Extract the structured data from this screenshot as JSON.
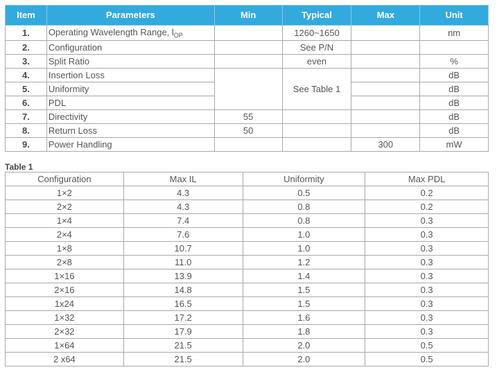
{
  "spec_table": {
    "headers": [
      "Item",
      "Parameters",
      "Min",
      "Typical",
      "Max",
      "Unit"
    ],
    "rows": [
      {
        "item": "1.",
        "param": "Operating Wavelength Range, ",
        "param_sub": "OP",
        "param_sub_prefix": "l",
        "min": "",
        "typical": "1260~1650",
        "max": "",
        "unit": "nm"
      },
      {
        "item": "2.",
        "param": "Configuration",
        "min": "",
        "typical": "See P/N",
        "max": "",
        "unit": ""
      },
      {
        "item": "3.",
        "param": "Split Ratio",
        "min": "",
        "typical": "even",
        "max": "",
        "unit": "%"
      },
      {
        "item": "4.",
        "param": "Insertion Loss",
        "min": "",
        "max": "",
        "unit": "dB"
      },
      {
        "item": "5.",
        "param": "Uniformity",
        "max": "",
        "unit": "dB"
      },
      {
        "item": "6.",
        "param": "PDL",
        "max": "",
        "unit": "dB"
      },
      {
        "item": "7.",
        "param": "Directivity",
        "min": "55",
        "typical": "",
        "max": "",
        "unit": "dB"
      },
      {
        "item": "8.",
        "param": "Return Loss",
        "min": "50",
        "typical": "",
        "max": "",
        "unit": "dB"
      },
      {
        "item": "9.",
        "param": "Power Handling",
        "min": "",
        "typical": "",
        "max": "300",
        "unit": "mW"
      }
    ],
    "merged_typical": "See Table 1"
  },
  "table1": {
    "title": "Table 1",
    "headers": [
      "Configuration",
      "Max IL",
      "Uniformity",
      "Max PDL"
    ],
    "rows": [
      [
        "1×2",
        "4.3",
        "0.5",
        "0.2"
      ],
      [
        "2×2",
        "4.3",
        "0.8",
        "0.2"
      ],
      [
        "1×4",
        "7.4",
        "0.8",
        "0.3"
      ],
      [
        "2×4",
        "7.6",
        "1.0",
        "0.3"
      ],
      [
        "1×8",
        "10.7",
        "1.0",
        "0.3"
      ],
      [
        "2×8",
        "11.0",
        "1.2",
        "0.3"
      ],
      [
        "1×16",
        "13.9",
        "1.4",
        "0.3"
      ],
      [
        "2×16",
        "14.8",
        "1.5",
        "0.3"
      ],
      [
        "1x24",
        "16.5",
        "1.5",
        "0.3"
      ],
      [
        "1×32",
        "17.2",
        "1.6",
        "0.3"
      ],
      [
        "2×32",
        "17.9",
        "1.8",
        "0.3"
      ],
      [
        "1×64",
        "21.5",
        "2.0",
        "0.5"
      ],
      [
        "2 x64",
        "21.5",
        "2.0",
        "0.5"
      ]
    ]
  },
  "colors": {
    "header_bg": "#33aadd",
    "header_text": "#ffffff",
    "border": "#a9a9a9",
    "text": "#555555"
  }
}
